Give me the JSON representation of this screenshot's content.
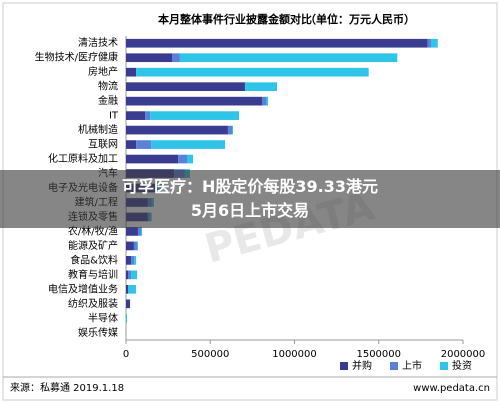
{
  "chart_data": {
    "type": "stacked-bar-horizontal",
    "title": "本月整体事件行业披露金额对比",
    "subtitle": "（单位：万元人民币）",
    "categories": [
      "清洁技术",
      "生物技术/医疗健康",
      "房地产",
      "物流",
      "金融",
      "IT",
      "机械制造",
      "互联网",
      "化工原料及加工",
      "汽车",
      "电子及光电设备",
      "建筑/工程",
      "连锁及零售",
      "农/林/牧/渔",
      "能源及矿产",
      "食品&饮料",
      "教育与培训",
      "电信及增值业务",
      "纺织及服装",
      "半导体",
      "娱乐传媒"
    ],
    "series": [
      {
        "name": "并购",
        "color": "#3a3d8f",
        "values": [
          1790000,
          273000,
          60000,
          706000,
          807000,
          113000,
          605000,
          60000,
          309000,
          285000,
          172000,
          130000,
          130000,
          71000,
          47000,
          30000,
          12000,
          12000,
          24000,
          0,
          0
        ]
      },
      {
        "name": "上市",
        "color": "#5b80d8",
        "values": [
          20000,
          47000,
          0,
          0,
          24000,
          30000,
          24000,
          89000,
          53000,
          65000,
          18000,
          24000,
          10000,
          18000,
          18000,
          18000,
          18000,
          0,
          0,
          0,
          0
        ]
      },
      {
        "name": "投资",
        "color": "#2fc4e8",
        "values": [
          40000,
          1290000,
          1380000,
          190000,
          12000,
          528000,
          6000,
          439000,
          36000,
          30000,
          24000,
          12000,
          12000,
          6000,
          6000,
          12000,
          36000,
          47000,
          0,
          6000,
          0
        ]
      }
    ],
    "xlim": [
      0,
      2000000
    ],
    "xticks": [
      0,
      500000,
      1000000,
      1500000,
      2000000
    ],
    "source": "来源：私募通 2019.1.18",
    "website": "www.pedata.cn",
    "watermark": "PEDATA"
  },
  "headline": {
    "line1": "可孚医疗：H股定价每股39.33港元",
    "line2": "5月6日上市交易"
  }
}
